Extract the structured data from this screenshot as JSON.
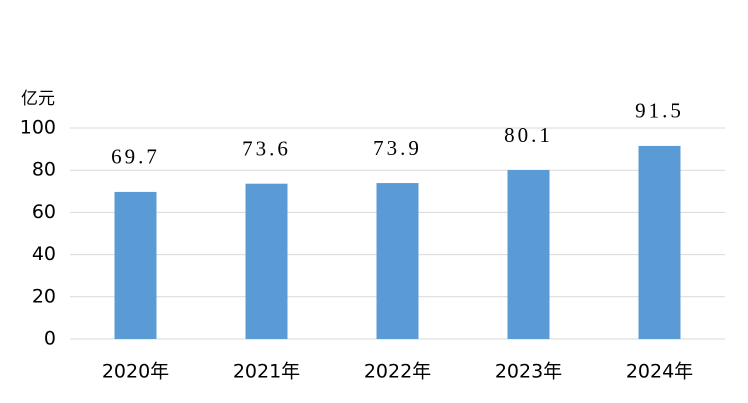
{
  "chart_data": {
    "type": "bar",
    "y_axis_label": "亿元",
    "categories": [
      "2020年",
      "2021年",
      "2022年",
      "2023年",
      "2024年"
    ],
    "values": [
      69.7,
      73.6,
      73.9,
      80.1,
      91.5
    ],
    "color": "#5b9bd5",
    "ylim": [
      0,
      100
    ],
    "yticks": [
      0,
      20,
      40,
      60,
      80,
      100
    ],
    "grid": true
  }
}
